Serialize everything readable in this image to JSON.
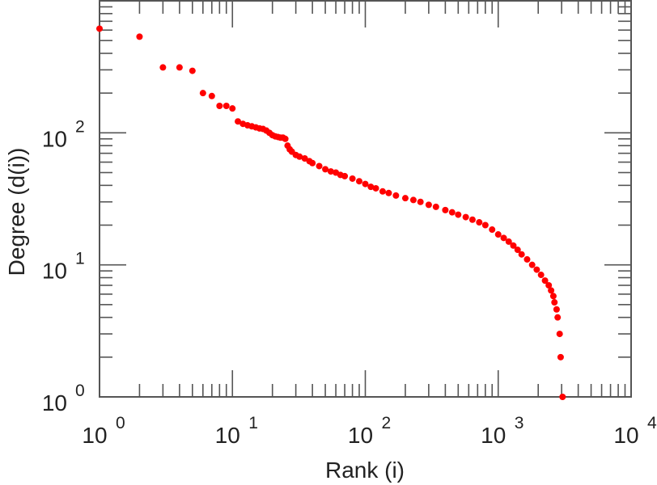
{
  "chart_data": {
    "type": "scatter",
    "title": "",
    "xlabel": "Rank (i)",
    "ylabel": "Degree (d(i))",
    "xscale": "log",
    "yscale": "log",
    "xlim": [
      1,
      10000
    ],
    "ylim": [
      1,
      1000
    ],
    "x_tick_base": "10",
    "x_tick_exponents": [
      "0",
      "1",
      "2",
      "3",
      "4"
    ],
    "y_tick_base": "10",
    "y_tick_exponents": [
      "0",
      "1",
      "2"
    ],
    "marker_color": "#ff0000",
    "series": [
      {
        "name": "degree",
        "points": [
          [
            1,
            615
          ],
          [
            2,
            535
          ],
          [
            3,
            313
          ],
          [
            4,
            313
          ],
          [
            5,
            295
          ],
          [
            6,
            200
          ],
          [
            7,
            190
          ],
          [
            8,
            160
          ],
          [
            9,
            160
          ],
          [
            10,
            153
          ],
          [
            11,
            122
          ],
          [
            12,
            117
          ],
          [
            13,
            114
          ],
          [
            14,
            112
          ],
          [
            15,
            110
          ],
          [
            16,
            108
          ],
          [
            17,
            107
          ],
          [
            18,
            104
          ],
          [
            19,
            100
          ],
          [
            20,
            96
          ],
          [
            21,
            94
          ],
          [
            22,
            93
          ],
          [
            23,
            92
          ],
          [
            24,
            92
          ],
          [
            25,
            90
          ],
          [
            26,
            80
          ],
          [
            27,
            75
          ],
          [
            28,
            72
          ],
          [
            30,
            68
          ],
          [
            32,
            66
          ],
          [
            35,
            64
          ],
          [
            38,
            61
          ],
          [
            40,
            59
          ],
          [
            45,
            56
          ],
          [
            50,
            53
          ],
          [
            55,
            51
          ],
          [
            60,
            50
          ],
          [
            65,
            48
          ],
          [
            70,
            47
          ],
          [
            80,
            45
          ],
          [
            90,
            43
          ],
          [
            100,
            41
          ],
          [
            110,
            39
          ],
          [
            120,
            38
          ],
          [
            135,
            36
          ],
          [
            150,
            35
          ],
          [
            170,
            33.5
          ],
          [
            200,
            32
          ],
          [
            230,
            31
          ],
          [
            260,
            30
          ],
          [
            300,
            28.5
          ],
          [
            340,
            27.5
          ],
          [
            400,
            26
          ],
          [
            450,
            25
          ],
          [
            500,
            24
          ],
          [
            570,
            23
          ],
          [
            640,
            22
          ],
          [
            720,
            21
          ],
          [
            800,
            20
          ],
          [
            900,
            18.5
          ],
          [
            1000,
            17
          ],
          [
            1100,
            16
          ],
          [
            1200,
            15
          ],
          [
            1300,
            14
          ],
          [
            1400,
            13
          ],
          [
            1500,
            12
          ],
          [
            1650,
            11
          ],
          [
            1800,
            10
          ],
          [
            1950,
            9.2
          ],
          [
            2100,
            8.4
          ],
          [
            2250,
            7.6
          ],
          [
            2400,
            7
          ],
          [
            2500,
            6.4
          ],
          [
            2600,
            5.8
          ],
          [
            2650,
            5.2
          ],
          [
            2750,
            4.6
          ],
          [
            2800,
            4
          ],
          [
            2900,
            3
          ],
          [
            2950,
            2
          ],
          [
            3050,
            1
          ]
        ]
      }
    ],
    "grid": false,
    "legend": "none"
  }
}
